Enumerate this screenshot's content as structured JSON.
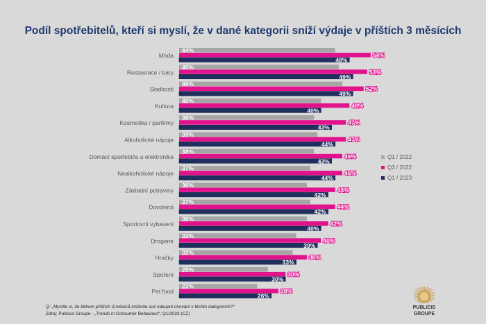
{
  "chart_data": {
    "type": "bar",
    "orientation": "horizontal",
    "title": "Podíl spotřebitelů, kteří si myslí, že v dané kategorii sníží výdaje v příštích 3 měsících",
    "categories": [
      "Móda",
      "Restaurace / bary",
      "Sladkosti",
      "Kultura",
      "Kosmetika / parfémy",
      "Alkoholické nápoje",
      "Domácí spotřebiče a elektronika",
      "Nealkoholické nápoje",
      "Základní potraviny",
      "Dovolená",
      "Sportovní vybavení",
      "Drogerie",
      "Hračky",
      "Spoření",
      "Pet food"
    ],
    "series": [
      {
        "name": "Q1 / 2022",
        "color": "#a6a6a6",
        "label_color": "#ffffff",
        "values": [
          44,
          45,
          46,
          40,
          38,
          39,
          38,
          37,
          36,
          37,
          36,
          33,
          32,
          25,
          22
        ]
      },
      {
        "name": "Q3 / 2022",
        "color": "#e0138c",
        "label_color": "#ffffff",
        "values": [
          54,
          53,
          52,
          48,
          47,
          47,
          46,
          46,
          44,
          44,
          42,
          40,
          36,
          30,
          28
        ]
      },
      {
        "name": "Q1 / 2023",
        "color": "#1f2f5f",
        "label_color": "#ffffff",
        "values": [
          48,
          49,
          49,
          40,
          43,
          44,
          43,
          44,
          42,
          42,
          40,
          39,
          33,
          30,
          26
        ]
      }
    ],
    "unit": "%",
    "legend_position": "right",
    "grid": false
  },
  "footer": {
    "question": "Q: „Myslíte si, že během příštích 3 měsíců změníte své nákupní chování v těchto kategoriích?“",
    "source": "Zdroj: Publicis Groupe - „Trends in Consumer Behaviour“; Q1/2023 (CZ)"
  },
  "logo": {
    "line1": "PUBLICIS",
    "line2": "GROUPE"
  }
}
